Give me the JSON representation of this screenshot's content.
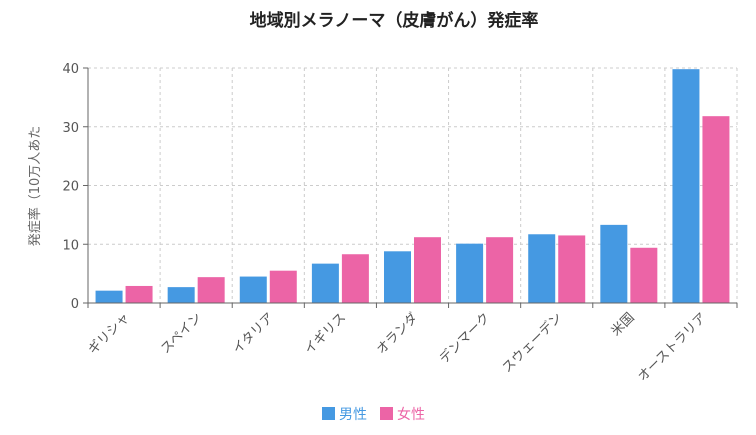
{
  "chart_data": {
    "type": "bar",
    "title": "地域別メラノーマ（皮膚がん）発症率",
    "xlabel": "",
    "ylabel": "発症率（10万人あた",
    "ylim": [
      0,
      40
    ],
    "yticks": [
      0,
      10,
      20,
      30,
      40
    ],
    "grid": true,
    "legend_position": "bottom",
    "categories": [
      "ギリシャ",
      "スペイン",
      "イタリア",
      "イギリス",
      "オランダ",
      "デンマーク",
      "スウェーデン",
      "米国",
      "オーストラリア"
    ],
    "series": [
      {
        "name": "男性",
        "color": "#4599e2",
        "values": [
          2.1,
          2.7,
          4.5,
          6.7,
          8.8,
          10.1,
          11.7,
          13.3,
          39.8
        ]
      },
      {
        "name": "女性",
        "color": "#ec64a6",
        "values": [
          2.9,
          4.4,
          5.5,
          8.3,
          11.2,
          11.2,
          11.5,
          9.4,
          31.8
        ]
      }
    ]
  }
}
